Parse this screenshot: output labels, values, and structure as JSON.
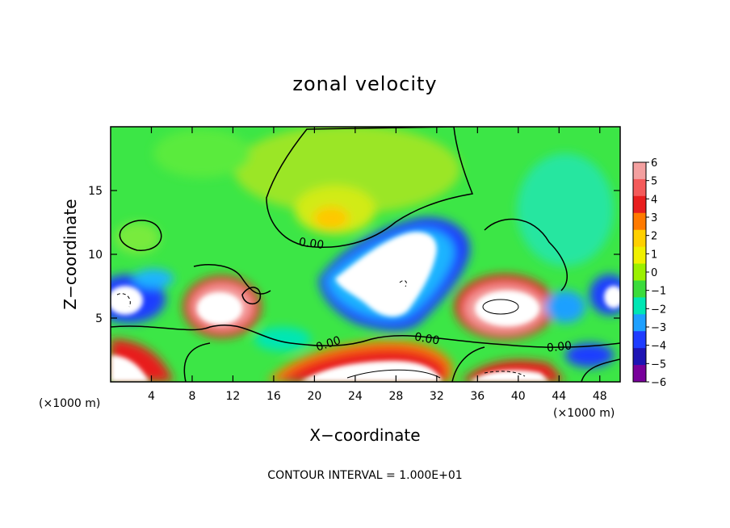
{
  "chart_data": {
    "type": "heatmap",
    "title": "zonal velocity",
    "xlabel": "X−coordinate",
    "ylabel": "Z−coordinate",
    "x_unit_left": "(×1000 m)",
    "x_unit_right": "(×1000 m)",
    "xlim": [
      0,
      50
    ],
    "ylim": [
      0,
      20
    ],
    "xticks": [
      "4",
      "8",
      "12",
      "16",
      "20",
      "24",
      "28",
      "32",
      "36",
      "40",
      "44",
      "48"
    ],
    "xtick_values": [
      4,
      8,
      12,
      16,
      20,
      24,
      28,
      32,
      36,
      40,
      44,
      48
    ],
    "yticks": [
      "5",
      "10",
      "15"
    ],
    "ytick_values": [
      5,
      10,
      15
    ],
    "colorbar": {
      "ticks": [
        "6",
        "5",
        "4",
        "3",
        "2",
        "1",
        "0",
        "−1",
        "−2",
        "−3",
        "−4",
        "−5",
        "−6"
      ],
      "values": [
        6,
        5,
        4,
        3,
        2,
        1,
        0,
        -1,
        -2,
        -3,
        -4,
        -5,
        -6
      ],
      "colors": [
        "#f4a0a0",
        "#f45a5a",
        "#e81e1e",
        "#ff7a00",
        "#ffd000",
        "#f0f000",
        "#9bf000",
        "#3cdc3c",
        "#00e6b4",
        "#1ea0ff",
        "#1e3cff",
        "#1e14b4",
        "#78009b"
      ]
    },
    "contour_labels": [
      "0.00",
      "0.00",
      "0.00",
      "0.00"
    ],
    "note": "CONTOUR INTERVAL = 1.000E+01"
  }
}
